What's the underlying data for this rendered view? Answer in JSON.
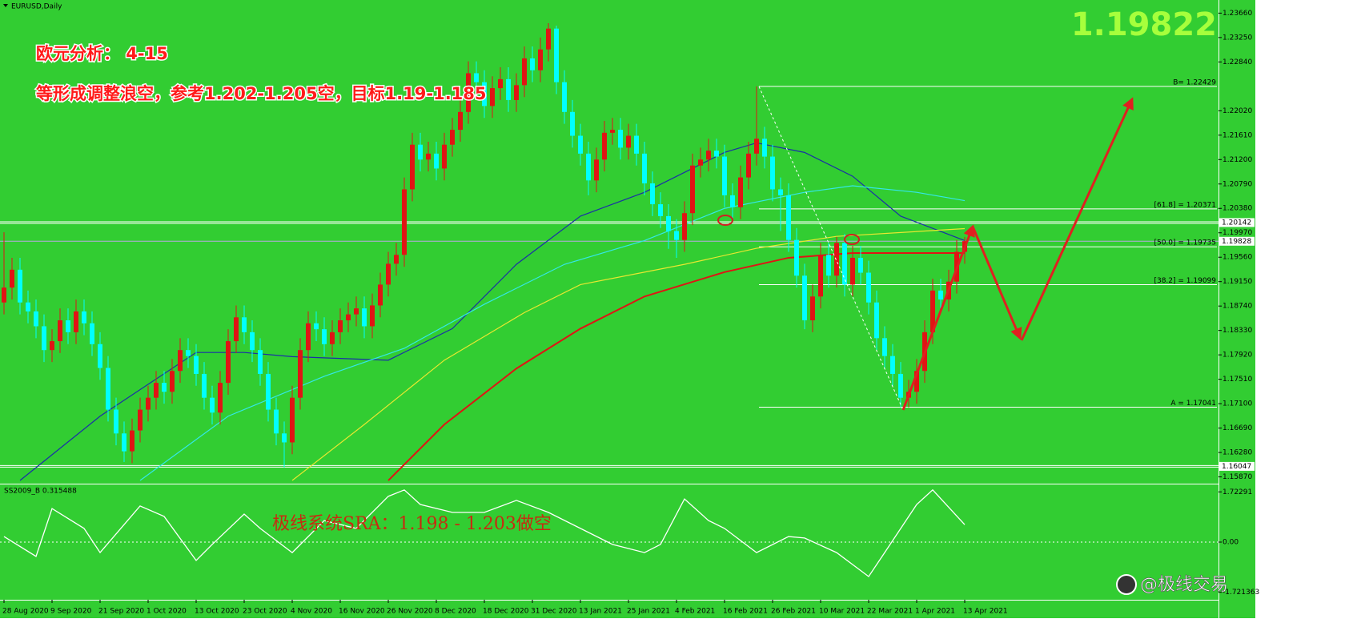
{
  "chart_data": [
    {
      "type": "candlestick",
      "title": "EURUSD,Daily",
      "categories": [
        "28 Aug 2020",
        null,
        null,
        null,
        null,
        null,
        "9 Sep 2020",
        null,
        null,
        null,
        null,
        null,
        "21 Sep 2020",
        null,
        null,
        null,
        null,
        null,
        "1 Oct 2020",
        null,
        null,
        null,
        null,
        null,
        "13 Oct 2020",
        null,
        null,
        null,
        null,
        null,
        "23 Oct 2020",
        null,
        null,
        null,
        null,
        null,
        "4 Nov 2020",
        null,
        null,
        null,
        null,
        null,
        "16 Nov 2020",
        null,
        null,
        null,
        null,
        null,
        "26 Nov 2020",
        null,
        null,
        null,
        null,
        null,
        "8 Dec 2020",
        null,
        null,
        null,
        null,
        null,
        "18 Dec 2020",
        null,
        null,
        null,
        null,
        null,
        "31 Dec 2020",
        null,
        null,
        null,
        null,
        null,
        "13 Jan 2021",
        null,
        null,
        null,
        null,
        null,
        "25 Jan 2021",
        null,
        null,
        null,
        null,
        null,
        "4 Feb 2021",
        null,
        null,
        null,
        null,
        null,
        "16 Feb 2021",
        null,
        null,
        null,
        null,
        null,
        "26 Feb 2021",
        null,
        null,
        null,
        null,
        null,
        "10 Mar 2021",
        null,
        null,
        null,
        null,
        null,
        "22 Mar 2021",
        null,
        null,
        null,
        null,
        null,
        "1 Apr 2021",
        null,
        null,
        null,
        null,
        null,
        "13 Apr 2021"
      ],
      "open": [
        1.188,
        1.1905,
        1.1935,
        1.188,
        1.1865,
        1.184,
        1.18,
        1.1815,
        1.185,
        1.183,
        1.1865,
        1.1845,
        1.181,
        1.177,
        1.17,
        1.166,
        1.163,
        1.1665,
        1.17,
        1.172,
        1.1745,
        1.173,
        1.1765,
        1.18,
        1.179,
        1.176,
        1.172,
        1.1695,
        1.1745,
        1.1815,
        1.1855,
        1.183,
        1.18,
        1.176,
        1.17,
        1.166,
        1.1645,
        1.172,
        1.18,
        1.1845,
        1.1835,
        1.181,
        1.183,
        1.185,
        1.186,
        1.187,
        1.184,
        1.1875,
        1.191,
        1.1945,
        1.196,
        1.207,
        1.2145,
        1.212,
        1.213,
        1.2105,
        1.2145,
        1.217,
        1.22,
        1.2265,
        1.225,
        1.221,
        1.224,
        1.2255,
        1.222,
        1.2245,
        1.229,
        1.227,
        1.2305,
        1.234,
        1.225,
        1.22,
        1.216,
        1.213,
        1.2085,
        1.212,
        1.2165,
        1.217,
        1.214,
        1.216,
        1.213,
        1.208,
        1.2045,
        1.2025,
        1.2,
        1.1985,
        1.203,
        1.211,
        1.212,
        1.2135,
        1.2125,
        1.206,
        1.204,
        1.209,
        1.213,
        1.2155,
        1.2125,
        1.207,
        1.206,
        1.1985,
        1.1925,
        1.185,
        1.189,
        1.196,
        1.1925,
        1.198,
        1.191,
        1.1955,
        1.193,
        1.188,
        1.182,
        1.179,
        1.176,
        1.172,
        1.173,
        1.1765,
        1.183,
        1.19,
        1.1885,
        1.1915,
        1.1965
      ],
      "high": [
        1.1998,
        1.1955,
        1.1955,
        1.19,
        1.1885,
        1.186,
        1.1835,
        1.187,
        1.187,
        1.1885,
        1.1885,
        1.1865,
        1.183,
        1.179,
        1.172,
        1.168,
        1.1685,
        1.172,
        1.174,
        1.1765,
        1.1765,
        1.1785,
        1.182,
        1.182,
        1.181,
        1.178,
        1.174,
        1.1765,
        1.1835,
        1.1875,
        1.1875,
        1.185,
        1.182,
        1.178,
        1.172,
        1.168,
        1.174,
        1.182,
        1.1865,
        1.1865,
        1.1855,
        1.185,
        1.187,
        1.188,
        1.189,
        1.189,
        1.1895,
        1.193,
        1.1965,
        1.198,
        1.209,
        1.2165,
        1.2165,
        1.215,
        1.215,
        1.2165,
        1.219,
        1.222,
        1.2285,
        1.2285,
        1.227,
        1.226,
        1.2275,
        1.2275,
        1.2265,
        1.231,
        1.231,
        1.2325,
        1.2349,
        1.2345,
        1.227,
        1.222,
        1.218,
        1.215,
        1.214,
        1.2185,
        1.219,
        1.219,
        1.218,
        1.218,
        1.215,
        1.21,
        1.2065,
        1.2045,
        1.202,
        1.205,
        1.213,
        1.214,
        1.2155,
        1.2155,
        1.2145,
        1.208,
        1.211,
        1.215,
        1.2243,
        1.2175,
        1.2145,
        1.209,
        1.208,
        1.2005,
        1.1945,
        1.191,
        1.198,
        1.198,
        1.199,
        1.1995,
        1.1975,
        1.1975,
        1.195,
        1.19,
        1.184,
        1.181,
        1.178,
        1.175,
        1.1785,
        1.185,
        1.192,
        1.192,
        1.1935,
        1.1985,
        1.199
      ],
      "low": [
        1.186,
        1.1885,
        1.186,
        1.1845,
        1.182,
        1.178,
        1.178,
        1.1795,
        1.181,
        1.181,
        1.1825,
        1.179,
        1.175,
        1.168,
        1.164,
        1.1612,
        1.161,
        1.1645,
        1.168,
        1.17,
        1.171,
        1.171,
        1.1745,
        1.177,
        1.174,
        1.17,
        1.1675,
        1.1675,
        1.1725,
        1.1795,
        1.181,
        1.178,
        1.174,
        1.168,
        1.164,
        1.1603,
        1.1625,
        1.17,
        1.178,
        1.1815,
        1.179,
        1.179,
        1.181,
        1.183,
        1.184,
        1.182,
        1.182,
        1.1855,
        1.189,
        1.1925,
        1.194,
        1.205,
        1.21,
        1.21,
        1.2085,
        1.2085,
        1.2125,
        1.215,
        1.218,
        1.223,
        1.219,
        1.219,
        1.222,
        1.22,
        1.22,
        1.2225,
        1.225,
        1.225,
        1.2285,
        1.223,
        1.218,
        1.214,
        1.211,
        1.206,
        1.2065,
        1.21,
        1.2145,
        1.212,
        1.212,
        1.211,
        1.206,
        1.2025,
        1.2005,
        1.197,
        1.1955,
        1.1965,
        1.201,
        1.209,
        1.21,
        1.2105,
        1.204,
        1.202,
        1.202,
        1.207,
        1.211,
        1.2105,
        1.205,
        1.2,
        1.1965,
        1.1905,
        1.1835,
        1.183,
        1.187,
        1.1905,
        1.1905,
        1.189,
        1.189,
        1.191,
        1.186,
        1.18,
        1.177,
        1.174,
        1.1704,
        1.1704,
        1.171,
        1.1745,
        1.181,
        1.1865,
        1.1865,
        1.1895,
        1.1945
      ],
      "close": [
        1.1905,
        1.1935,
        1.188,
        1.1865,
        1.184,
        1.18,
        1.1815,
        1.185,
        1.183,
        1.1865,
        1.1845,
        1.181,
        1.177,
        1.17,
        1.166,
        1.163,
        1.1665,
        1.17,
        1.172,
        1.1745,
        1.173,
        1.1765,
        1.18,
        1.179,
        1.176,
        1.172,
        1.1695,
        1.1745,
        1.1815,
        1.1855,
        1.183,
        1.18,
        1.176,
        1.17,
        1.166,
        1.1645,
        1.172,
        1.18,
        1.1845,
        1.1835,
        1.181,
        1.183,
        1.185,
        1.186,
        1.187,
        1.184,
        1.1875,
        1.191,
        1.1945,
        1.196,
        1.207,
        1.2145,
        1.212,
        1.213,
        1.2105,
        1.2145,
        1.217,
        1.22,
        1.2265,
        1.225,
        1.221,
        1.224,
        1.2255,
        1.222,
        1.2245,
        1.229,
        1.227,
        1.2305,
        1.234,
        1.225,
        1.22,
        1.216,
        1.213,
        1.2085,
        1.212,
        1.2165,
        1.217,
        1.214,
        1.216,
        1.213,
        1.208,
        1.2045,
        1.2025,
        1.2,
        1.1985,
        1.203,
        1.211,
        1.212,
        1.2135,
        1.2125,
        1.206,
        1.204,
        1.209,
        1.213,
        1.2155,
        1.2125,
        1.207,
        1.206,
        1.1985,
        1.1925,
        1.185,
        1.189,
        1.196,
        1.1925,
        1.198,
        1.191,
        1.1955,
        1.193,
        1.188,
        1.182,
        1.179,
        1.176,
        1.172,
        1.173,
        1.1765,
        1.183,
        1.19,
        1.1885,
        1.1915,
        1.1965,
        1.1983
      ],
      "up_color": "#e01414",
      "down_color": "#00ffff",
      "moving_averages": [
        {
          "color": "#1a2ea8",
          "x": [
            2,
            12,
            24,
            30,
            36,
            48,
            56,
            64,
            72,
            80,
            90,
            94,
            100,
            106,
            112,
            120
          ],
          "values": [
            1.1581,
            1.1689,
            1.1796,
            1.1796,
            1.1789,
            1.1783,
            1.1836,
            1.1944,
            1.2025,
            1.2065,
            1.2132,
            1.2148,
            1.2132,
            1.2092,
            1.2025,
            1.1984
          ]
        },
        {
          "color": "#33e8e8",
          "x": [
            17,
            28,
            40,
            50,
            60,
            70,
            80,
            90,
            100,
            106,
            114,
            120
          ],
          "values": [
            1.1581,
            1.1689,
            1.1756,
            1.1803,
            1.1877,
            1.1944,
            1.1984,
            1.2038,
            1.2065,
            1.2076,
            1.2065,
            1.2051
          ]
        },
        {
          "color": "#e8e830",
          "x": [
            36,
            45,
            55,
            65,
            72,
            85,
            94,
            104,
            120
          ],
          "values": [
            1.1581,
            1.1675,
            1.1783,
            1.1863,
            1.191,
            1.1944,
            1.1971,
            1.1991,
            1.2004
          ]
        },
        {
          "color": "#e01414",
          "x": [
            48,
            55,
            64,
            72,
            80,
            90,
            98,
            106,
            120
          ],
          "values": [
            1.1581,
            1.1675,
            1.1769,
            1.1836,
            1.189,
            1.1931,
            1.1955,
            1.1963,
            1.1963
          ]
        }
      ],
      "levels": [
        {
          "value": 1.22429,
          "label": "B= 1.22429"
        },
        {
          "value": 1.20371,
          "label": "[61.8] = 1.20371"
        },
        {
          "value": 1.19735,
          "label": "[50.0] = 1.19735"
        },
        {
          "value": 1.19099,
          "label": "[38.2] = 1.19099"
        },
        {
          "value": 1.17041,
          "label": "A = 1.17041"
        }
      ],
      "hlines": [
        1.20142,
        1.16047
      ],
      "last_price": 1.19828,
      "xlim": [
        -0.5,
        151.7
      ],
      "ylim": [
        1.1577,
        1.2384
      ],
      "yticks": [
        {
          "value": 1.2366,
          "label": "1.23660"
        },
        {
          "value": 1.2325,
          "label": "1.23250"
        },
        {
          "value": 1.2284,
          "label": "1.22840"
        },
        {
          "value": 1.2202,
          "label": "1.22020"
        },
        {
          "value": 1.2161,
          "label": "1.21610"
        },
        {
          "value": 1.212,
          "label": "1.21200"
        },
        {
          "value": 1.2079,
          "label": "1.20790"
        },
        {
          "value": 1.2038,
          "label": "1.20380"
        },
        {
          "value": 1.1997,
          "label": "1.19970"
        },
        {
          "value": 1.1956,
          "label": "1.19560"
        },
        {
          "value": 1.1915,
          "label": "1.19150"
        },
        {
          "value": 1.1874,
          "label": "1.18740"
        },
        {
          "value": 1.1833,
          "label": "1.18330"
        },
        {
          "value": 1.1792,
          "label": "1.17920"
        },
        {
          "value": 1.1751,
          "label": "1.17510"
        },
        {
          "value": 1.171,
          "label": "1.17100"
        },
        {
          "value": 1.1669,
          "label": "1.16690"
        },
        {
          "value": 1.1628,
          "label": "1.16280"
        },
        {
          "value": 1.1587,
          "label": "1.15870"
        }
      ]
    },
    {
      "type": "line",
      "title": "SS2009_B 0.315488",
      "color": "#ffffff",
      "x": [
        0,
        4,
        6,
        10,
        12,
        17,
        20,
        24,
        26,
        30,
        32,
        36,
        40,
        44,
        48,
        50,
        52,
        56,
        60,
        64,
        68,
        72,
        76,
        80,
        82,
        85,
        88,
        90,
        94,
        98,
        100,
        104,
        108,
        110,
        114,
        116,
        120
      ],
      "values": [
        0.19,
        -0.49,
        1.15,
        0.47,
        -0.36,
        1.24,
        0.88,
        -0.63,
        -0.08,
        0.96,
        0.47,
        -0.36,
        0.74,
        0.47,
        1.57,
        1.79,
        1.29,
        1.02,
        1.02,
        1.43,
        1.02,
        0.47,
        -0.08,
        -0.36,
        -0.08,
        1.48,
        0.74,
        0.47,
        -0.36,
        0.19,
        0.14,
        -0.36,
        -1.18,
        -0.36,
        1.29,
        1.79,
        0.6
      ],
      "xlim": [
        -0.5,
        151.7
      ],
      "ylim": [
        -1.95,
        1.95
      ],
      "yticks": [
        1.72291,
        {
          "value": 0,
          "label": "0.00"
        },
        -1.721363
      ]
    }
  ],
  "big_price": 1.19822,
  "annotations": [
    "欧元分析： 4-15",
    "等形成调整浪空，参考1.202-1.205空，目标1.19-1.185",
    "极线系统SRA：1.198 - 1.203做空"
  ],
  "watermark": "@极线交易"
}
